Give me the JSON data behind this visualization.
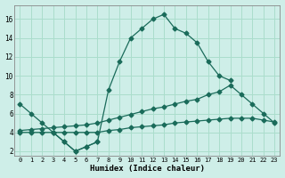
{
  "xlabel": "Humidex (Indice chaleur)",
  "xlim": [
    -0.5,
    23.5
  ],
  "ylim": [
    1.5,
    17.5
  ],
  "xticks": [
    0,
    1,
    2,
    3,
    4,
    5,
    6,
    7,
    8,
    9,
    10,
    11,
    12,
    13,
    14,
    15,
    16,
    17,
    18,
    19,
    20,
    21,
    22,
    23
  ],
  "yticks": [
    2,
    4,
    6,
    8,
    10,
    12,
    14,
    16
  ],
  "bg_color": "#ceeee8",
  "line_color": "#1a6b5a",
  "grid_color": "#aaddcc",
  "series": {
    "line1_x": [
      0,
      1,
      2,
      3,
      4,
      5,
      6,
      7,
      8,
      9,
      10,
      11,
      12,
      13,
      14,
      15,
      16,
      17,
      18,
      19
    ],
    "line1_y": [
      7,
      6,
      5,
      4,
      3,
      2,
      2.5,
      3,
      8.5,
      11.5,
      14,
      15,
      16,
      16.5,
      15,
      14.5,
      13.5,
      11.5,
      10,
      9.5
    ],
    "line2_x": [
      3,
      4,
      5,
      6,
      7
    ],
    "line2_y": [
      4,
      3,
      2,
      2.5,
      3
    ],
    "line3_x": [
      0,
      1,
      2,
      3,
      4,
      5,
      6,
      7,
      8,
      9,
      10,
      11,
      12,
      13,
      14,
      15,
      16,
      17,
      18,
      19,
      20,
      21,
      22,
      23
    ],
    "line3_y": [
      4,
      4,
      4,
      4,
      4,
      4,
      4,
      4,
      4.2,
      4.3,
      4.5,
      4.6,
      4.7,
      4.8,
      5.0,
      5.1,
      5.2,
      5.3,
      5.4,
      5.5,
      5.5,
      5.5,
      5.3,
      5.1
    ],
    "line4_x": [
      0,
      1,
      2,
      3,
      4,
      5,
      6,
      7,
      8,
      9,
      10,
      11,
      12,
      13,
      14,
      15,
      16,
      17,
      18,
      19,
      20,
      21,
      22,
      23
    ],
    "line4_y": [
      4.2,
      4.3,
      4.4,
      4.5,
      4.6,
      4.7,
      4.8,
      5.0,
      5.3,
      5.6,
      5.9,
      6.2,
      6.5,
      6.7,
      7.0,
      7.3,
      7.5,
      8.0,
      8.3,
      9.0,
      8.0,
      7.0,
      6.0,
      5.0
    ]
  }
}
